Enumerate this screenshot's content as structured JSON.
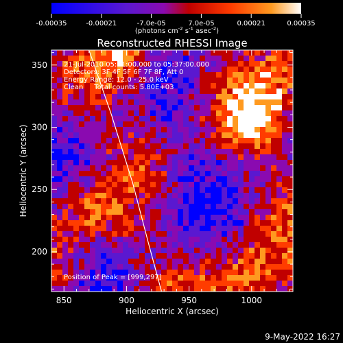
{
  "chart_data": {
    "type": "heatmap",
    "title": "Reconstructed RHESSI Image",
    "xlabel": "Heliocentric X (arcsec)",
    "ylabel": "Heliocentric Y (arcsec)",
    "xlim": [
      840,
      1033
    ],
    "ylim": [
      168,
      362
    ],
    "xticks": [
      850,
      900,
      950,
      1000
    ],
    "yticks": [
      200,
      250,
      300,
      350
    ],
    "colorbar": {
      "ticks": [
        "-0.00035",
        "-0.00021",
        "-7.0e-05",
        "7.0e-05",
        "0.00021",
        "0.00035"
      ],
      "range": [
        -0.00035,
        0.00035
      ],
      "unit_parts": [
        "(photons cm",
        "-2",
        " s",
        "-1",
        " asec",
        "-2",
        ")"
      ],
      "colors": [
        "#0000ff",
        "#5a18d0",
        "#8a0ab0",
        "#c00000",
        "#ff3c00",
        "#ff9a20",
        "#ffffff"
      ]
    },
    "annotations": [
      "21-Jul-2010 05:31:00.000 to 05:37:00.000",
      "Detectors: 3F 4F 5F 6F 7F 8F, Att 0",
      "Energy Range: 12.0 - 25.0 keV",
      "Clean     Total counts: 5.80E+03",
      "Position of Peak = [999,297]"
    ],
    "limb_curve": {
      "x": [
        870,
        888,
        905,
        918,
        928
      ],
      "y": [
        362,
        310,
        255,
        205,
        168
      ]
    },
    "grid": false
  },
  "footer": {
    "timestamp": "9-May-2022 16:27"
  }
}
